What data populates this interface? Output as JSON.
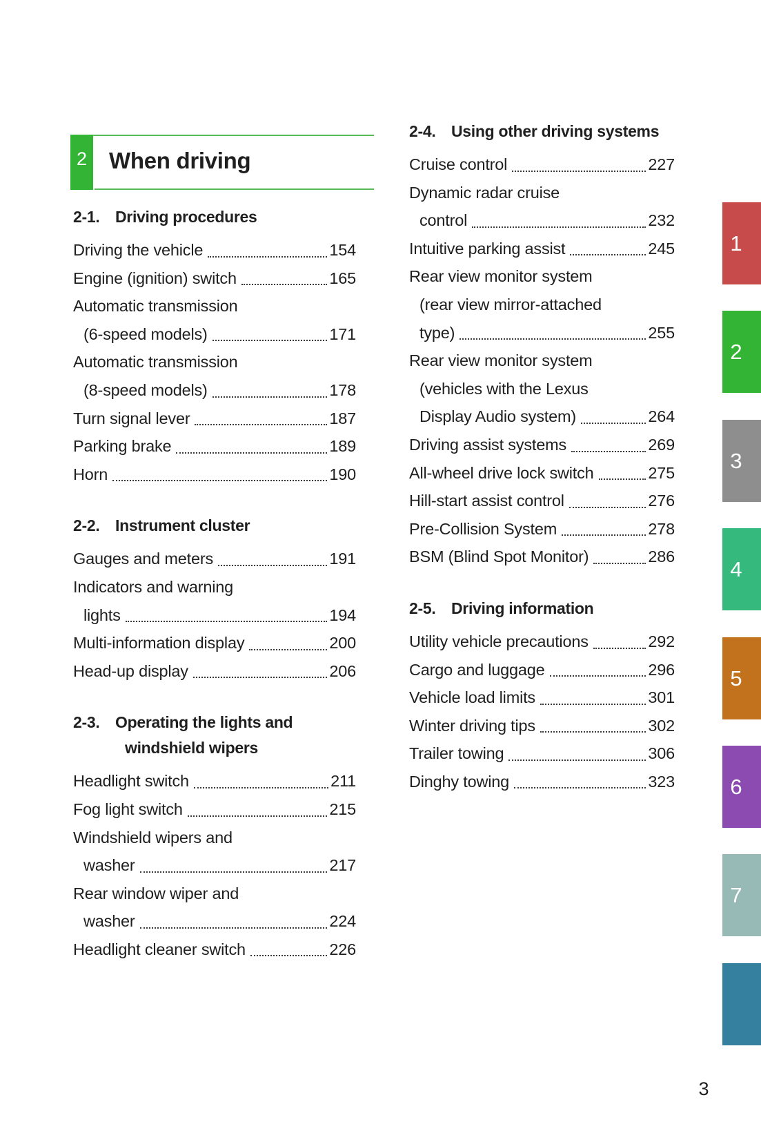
{
  "header": {
    "chapter_number": "2",
    "title": "When driving"
  },
  "page": {
    "number": "3"
  },
  "colors": {
    "chapter_green": "#33b434",
    "rule_green": "#55bb55",
    "text": "#1f1f1f"
  },
  "columns": {
    "left": {
      "sections": [
        {
          "number": "2-1.",
          "title_lines": [
            "Driving procedures"
          ],
          "entries": [
            {
              "lines": [
                "Driving the vehicle"
              ],
              "page": "154"
            },
            {
              "lines": [
                "Engine (ignition) switch"
              ],
              "page": "165"
            },
            {
              "lines": [
                "Automatic transmission",
                "(6-speed models)"
              ],
              "page": "171"
            },
            {
              "lines": [
                "Automatic transmission",
                "(8-speed models)"
              ],
              "page": "178"
            },
            {
              "lines": [
                "Turn signal lever"
              ],
              "page": "187"
            },
            {
              "lines": [
                "Parking brake"
              ],
              "page": "189"
            },
            {
              "lines": [
                "Horn"
              ],
              "page": "190"
            }
          ]
        },
        {
          "number": "2-2.",
          "title_lines": [
            "Instrument cluster"
          ],
          "entries": [
            {
              "lines": [
                "Gauges and meters"
              ],
              "page": "191"
            },
            {
              "lines": [
                "Indicators and warning",
                "lights"
              ],
              "page": "194"
            },
            {
              "lines": [
                "Multi-information display"
              ],
              "page": "200"
            },
            {
              "lines": [
                "Head-up display"
              ],
              "page": "206"
            }
          ]
        },
        {
          "number": "2-3.",
          "title_lines": [
            "Operating the lights and",
            "windshield wipers"
          ],
          "entries": [
            {
              "lines": [
                "Headlight switch"
              ],
              "page": "211"
            },
            {
              "lines": [
                "Fog light switch"
              ],
              "page": "215"
            },
            {
              "lines": [
                "Windshield wipers and",
                "washer"
              ],
              "page": "217"
            },
            {
              "lines": [
                "Rear window wiper and",
                "washer"
              ],
              "page": "224"
            },
            {
              "lines": [
                "Headlight cleaner switch"
              ],
              "page": "226"
            }
          ]
        }
      ]
    },
    "right": {
      "sections": [
        {
          "number": "2-4.",
          "title_lines": [
            "Using other driving systems"
          ],
          "entries": [
            {
              "lines": [
                "Cruise control"
              ],
              "page": "227"
            },
            {
              "lines": [
                "Dynamic radar cruise",
                "control"
              ],
              "page": "232"
            },
            {
              "lines": [
                "Intuitive parking assist"
              ],
              "page": "245"
            },
            {
              "lines": [
                "Rear view monitor system",
                "(rear view mirror-attached",
                "type)"
              ],
              "page": "255"
            },
            {
              "lines": [
                "Rear view monitor system",
                "(vehicles with the Lexus",
                "Display Audio system)"
              ],
              "page": "264"
            },
            {
              "lines": [
                "Driving assist systems"
              ],
              "page": "269"
            },
            {
              "lines": [
                "All-wheel drive lock switch"
              ],
              "page": "275"
            },
            {
              "lines": [
                "Hill-start assist control"
              ],
              "page": "276"
            },
            {
              "lines": [
                "Pre-Collision System"
              ],
              "page": "278"
            },
            {
              "lines": [
                "BSM (Blind Spot Monitor)"
              ],
              "page": "286"
            }
          ]
        },
        {
          "number": "2-5.",
          "title_lines": [
            "Driving information"
          ],
          "entries": [
            {
              "lines": [
                "Utility vehicle precautions"
              ],
              "page": "292"
            },
            {
              "lines": [
                "Cargo and luggage"
              ],
              "page": "296"
            },
            {
              "lines": [
                "Vehicle load limits"
              ],
              "page": "301"
            },
            {
              "lines": [
                "Winter driving tips"
              ],
              "page": "302"
            },
            {
              "lines": [
                "Trailer towing"
              ],
              "page": "306"
            },
            {
              "lines": [
                "Dinghy towing"
              ],
              "page": "323"
            }
          ]
        }
      ]
    }
  },
  "side_tabs": [
    {
      "label": "1",
      "color": "#c84b4b"
    },
    {
      "label": "2",
      "color": "#33b434"
    },
    {
      "label": "3",
      "color": "#8e8e8e"
    },
    {
      "label": "4",
      "color": "#36b97c"
    },
    {
      "label": "5",
      "color": "#c2711d"
    },
    {
      "label": "6",
      "color": "#8c4bb0"
    },
    {
      "label": "7",
      "color": "#97bab6"
    },
    {
      "label": "",
      "color": "#35809f"
    }
  ]
}
